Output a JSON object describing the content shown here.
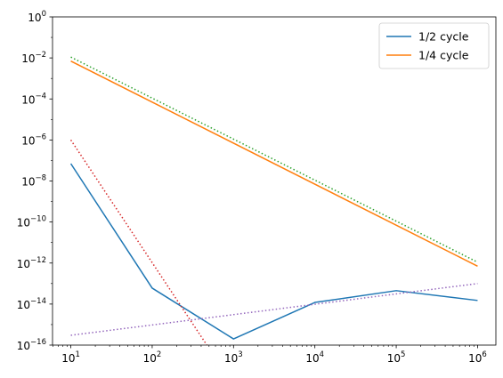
{
  "chart_data": {
    "type": "line",
    "xscale": "log",
    "yscale": "log",
    "xlim": [
      10,
      1000000
    ],
    "ylim": [
      1e-16,
      1
    ],
    "x_ticks": [
      {
        "value": 10,
        "base": "10",
        "exp": "1"
      },
      {
        "value": 100,
        "base": "10",
        "exp": "2"
      },
      {
        "value": 1000,
        "base": "10",
        "exp": "3"
      },
      {
        "value": 10000,
        "base": "10",
        "exp": "4"
      },
      {
        "value": 100000,
        "base": "10",
        "exp": "5"
      },
      {
        "value": 1000000,
        "base": "10",
        "exp": "6"
      }
    ],
    "y_ticks": [
      {
        "value": 1e-16,
        "base": "10",
        "exp": "−16"
      },
      {
        "value": 1e-14,
        "base": "10",
        "exp": "−14"
      },
      {
        "value": 1e-12,
        "base": "10",
        "exp": "−12"
      },
      {
        "value": 1e-10,
        "base": "10",
        "exp": "−10"
      },
      {
        "value": 1e-08,
        "base": "10",
        "exp": "−8"
      },
      {
        "value": 1e-06,
        "base": "10",
        "exp": "−6"
      },
      {
        "value": 0.0001,
        "base": "10",
        "exp": "−4"
      },
      {
        "value": 0.01,
        "base": "10",
        "exp": "−2"
      },
      {
        "value": 1,
        "base": "10",
        "exp": "0"
      }
    ],
    "legend_position": "top-right",
    "series": [
      {
        "name": "1/2 cycle",
        "color": "#1f77b4",
        "style": "solid",
        "x": [
          10,
          100,
          1000,
          10000,
          100000,
          1000000
        ],
        "y": [
          7e-08,
          6e-14,
          2e-16,
          1.2e-14,
          4.5e-14,
          1.5e-14
        ]
      },
      {
        "name": "1/4 cycle",
        "color": "#ff7f0e",
        "style": "solid",
        "x": [
          10,
          1000000
        ],
        "y": [
          0.007,
          7e-13
        ]
      },
      {
        "color": "#2ca02c",
        "style": "dotted",
        "x": [
          10,
          1000000
        ],
        "y": [
          0.011,
          1.1e-12
        ]
      },
      {
        "color": "#d62728",
        "style": "dotted",
        "x": [
          10,
          470
        ],
        "y": [
          1e-06,
          1e-16
        ]
      },
      {
        "color": "#9467bd",
        "style": "dotted",
        "x": [
          10,
          1000000
        ],
        "y": [
          3e-16,
          1e-13
        ]
      }
    ]
  }
}
